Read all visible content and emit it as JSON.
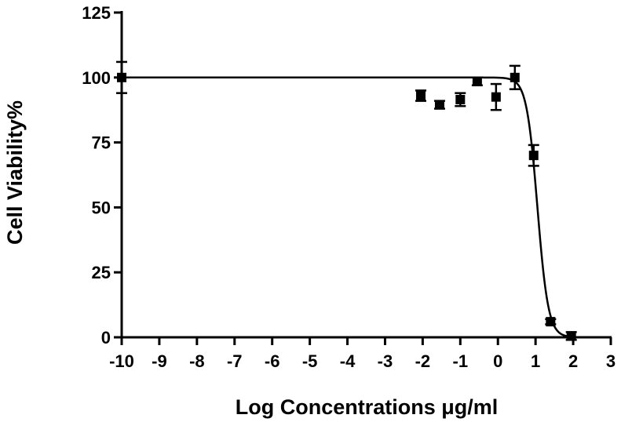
{
  "chart_data": {
    "type": "scatter",
    "title": "",
    "xlabel": "Log Concentrations μg/ml",
    "ylabel": "Cell Viability%",
    "xlim": [
      -10,
      3
    ],
    "ylim": [
      0,
      125
    ],
    "xticks": [
      "-10",
      "-9",
      "-8",
      "-7",
      "-6",
      "-5",
      "-4",
      "-3",
      "-2",
      "-1",
      "0",
      "1",
      "2",
      "3"
    ],
    "yticks": [
      "0",
      "25",
      "50",
      "75",
      "100",
      "125"
    ],
    "grid": false,
    "legend": "none",
    "marker": "square",
    "points": [
      {
        "x": -10.0,
        "y": 100,
        "err": 6
      },
      {
        "x": -2.05,
        "y": 93,
        "err": 2
      },
      {
        "x": -1.55,
        "y": 89.5,
        "err": 1.5
      },
      {
        "x": -1.0,
        "y": 91.5,
        "err": 2.5
      },
      {
        "x": -0.55,
        "y": 98.5,
        "err": 1.5
      },
      {
        "x": -0.05,
        "y": 92.5,
        "err": 5
      },
      {
        "x": 0.45,
        "y": 100,
        "err": 4.5
      },
      {
        "x": 0.95,
        "y": 70,
        "err": 4
      },
      {
        "x": 1.4,
        "y": 6,
        "err": 1
      },
      {
        "x": 1.95,
        "y": 0.5,
        "err": 1.5
      }
    ],
    "fit": {
      "type": "sigmoidal dose-response",
      "top": 100,
      "bottom": 0,
      "logEC50": 1.05,
      "hill_slope": -3
    }
  }
}
